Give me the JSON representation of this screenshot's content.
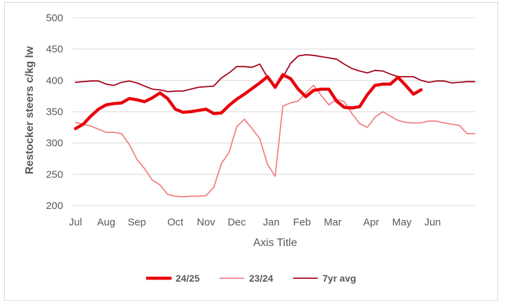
{
  "chart_data": {
    "type": "line",
    "title": "",
    "xlabel": "Axis Title",
    "ylabel": "Restocker steers c/kg lw",
    "ylim": [
      200,
      500
    ],
    "yticks": [
      200,
      250,
      300,
      350,
      400,
      450,
      500
    ],
    "grid": "horizontal",
    "legend_position": "bottom",
    "xlim": [
      0,
      52
    ],
    "xticks": [
      {
        "label": "Jul",
        "x": 0
      },
      {
        "label": "Aug",
        "x": 4
      },
      {
        "label": "Sep",
        "x": 8
      },
      {
        "label": "Oct",
        "x": 13
      },
      {
        "label": "Nov",
        "x": 17
      },
      {
        "label": "Dec",
        "x": 21
      },
      {
        "label": "Jan",
        "x": 25.5
      },
      {
        "label": "Feb",
        "x": 29.5
      },
      {
        "label": "Mar",
        "x": 33.5
      },
      {
        "label": "Apr",
        "x": 38.5
      },
      {
        "label": "May",
        "x": 42.5
      },
      {
        "label": "Jun",
        "x": 46.5
      }
    ],
    "series": [
      {
        "name": "24/25",
        "color": "#e8000b",
        "width": 4.5,
        "x": [
          0,
          1,
          2,
          3,
          4,
          5,
          6,
          7,
          8,
          9,
          10,
          11,
          12,
          13,
          14,
          15,
          16,
          17,
          18,
          19,
          20,
          21,
          22,
          23,
          24,
          25,
          26,
          27,
          28,
          29,
          30,
          31,
          32,
          33,
          34,
          35,
          36,
          37,
          38,
          39,
          40,
          41,
          42,
          43,
          44,
          45
        ],
        "values": [
          323,
          330,
          343,
          354,
          361,
          363,
          364,
          371,
          369,
          366,
          372,
          380,
          371,
          354,
          349,
          350,
          352,
          354,
          347,
          348,
          360,
          370,
          378,
          387,
          396,
          406,
          389,
          409,
          403,
          386,
          374,
          384,
          386,
          386,
          367,
          357,
          356,
          358,
          377,
          392,
          394,
          394,
          405,
          392,
          378,
          385
        ]
      },
      {
        "name": "23/24",
        "color": "#f08080",
        "width": 1.8,
        "x": [
          0,
          1,
          2,
          3,
          4,
          5,
          6,
          7,
          8,
          9,
          10,
          11,
          12,
          13,
          14,
          15,
          16,
          17,
          18,
          19,
          20,
          21,
          22,
          23,
          24,
          25,
          26,
          27,
          28,
          29,
          30,
          31,
          32,
          33,
          34,
          35,
          36,
          37,
          38,
          39,
          40,
          41,
          42,
          43,
          44,
          45,
          46,
          47,
          48,
          49,
          50,
          51,
          52
        ],
        "values": [
          333,
          330,
          327,
          322,
          317,
          317,
          315,
          298,
          274,
          259,
          241,
          233,
          218,
          215,
          214,
          215,
          215,
          216,
          229,
          267,
          285,
          326,
          338,
          323,
          307,
          266,
          247,
          359,
          364,
          367,
          380,
          392,
          376,
          361,
          370,
          366,
          347,
          331,
          325,
          341,
          350,
          343,
          336,
          333,
          332,
          332,
          335,
          335,
          332,
          330,
          328,
          315,
          315
        ]
      },
      {
        "name": "7yr avg",
        "color": "#a50016",
        "width": 1.8,
        "x": [
          0,
          1,
          2,
          3,
          4,
          5,
          6,
          7,
          8,
          9,
          10,
          11,
          12,
          13,
          14,
          15,
          16,
          17,
          18,
          19,
          20,
          21,
          22,
          23,
          24,
          25,
          26,
          27,
          28,
          29,
          30,
          31,
          32,
          33,
          34,
          35,
          36,
          37,
          38,
          39,
          40,
          41,
          42,
          43,
          44,
          45,
          46,
          47,
          48,
          49,
          50,
          51,
          52
        ],
        "values": [
          397,
          398,
          399,
          399,
          394,
          392,
          397,
          399,
          396,
          391,
          386,
          385,
          382,
          383,
          383,
          386,
          389,
          390,
          391,
          404,
          412,
          422,
          422,
          421,
          426,
          405,
          388,
          405,
          427,
          439,
          441,
          440,
          438,
          436,
          434,
          426,
          419,
          415,
          412,
          416,
          415,
          410,
          406,
          406,
          406,
          400,
          397,
          399,
          399,
          396,
          397,
          398,
          398
        ]
      }
    ]
  }
}
